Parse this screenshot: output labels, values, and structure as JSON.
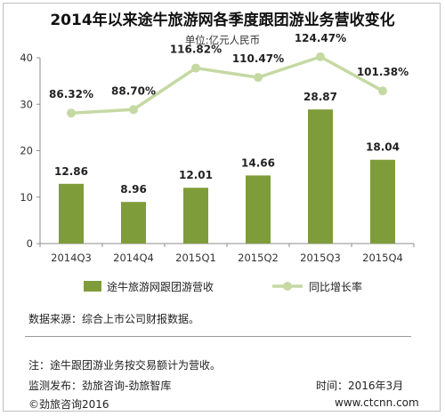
{
  "title": "2014年以来途牛旅游网各季度跟团游业务营收变化",
  "unit": "单位:亿元人民币",
  "chart_data": {
    "type": "bar",
    "categories": [
      "2014Q3",
      "2014Q4",
      "2015Q1",
      "2015Q2",
      "2015Q3",
      "2015Q4"
    ],
    "series": [
      {
        "name": "途牛旅游网跟团游营收",
        "type": "bar",
        "values": [
          12.86,
          8.96,
          12.01,
          14.66,
          28.87,
          18.04
        ],
        "labels": [
          "12.86",
          "8.96",
          "12.01",
          "14.66",
          "28.87",
          "18.04"
        ],
        "color": "#7f9c3a"
      },
      {
        "name": "同比增长率",
        "type": "line",
        "values": [
          86.32,
          88.7,
          116.82,
          110.47,
          124.47,
          101.38
        ],
        "labels": [
          "86.32%",
          "88.70%",
          "116.82%",
          "110.47%",
          "124.47%",
          "101.38%"
        ],
        "color": "#c5d9a3"
      }
    ],
    "yticks": [
      "0",
      "10",
      "20",
      "30",
      "40"
    ],
    "ylim": [
      0,
      40
    ],
    "grid": false,
    "legend_position": "bottom"
  },
  "notes": {
    "source": "数据来源：综合上市公司财报数据。",
    "note": "注：途牛跟团游业务按交易额计为营收。",
    "publisher": "监测发布：劲旅咨询-劲旅智库",
    "time": "时间：2016年3月",
    "copyright": "©劲旅咨询2016",
    "website": "www.ctcnn.com"
  }
}
